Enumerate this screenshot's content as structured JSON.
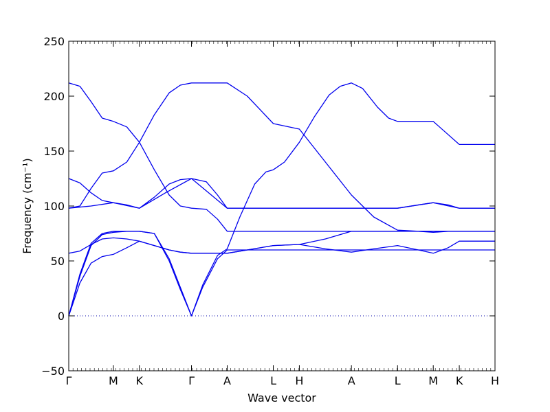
{
  "chart_data": {
    "type": "line",
    "xlabel": "Wave vector",
    "ylabel": "Frequency (cm⁻¹)",
    "ylim": [
      -50,
      250
    ],
    "yticks": [
      -50,
      0,
      50,
      100,
      150,
      200,
      250
    ],
    "xticks": [
      {
        "label": "Γ",
        "x": 0
      },
      {
        "label": "M",
        "x": 0.6
      },
      {
        "label": "K",
        "x": 0.95
      },
      {
        "label": "Γ",
        "x": 1.65
      },
      {
        "label": "A",
        "x": 2.13
      },
      {
        "label": "L",
        "x": 2.75
      },
      {
        "label": "H",
        "x": 3.1
      },
      {
        "label": "A",
        "x": 3.8
      },
      {
        "label": "L",
        "x": 4.42
      },
      {
        "label": "M",
        "x": 4.9
      },
      {
        "label": "K",
        "x": 5.25
      },
      {
        "label": "H",
        "x": 5.73
      }
    ],
    "xlim": [
      0,
      5.73
    ],
    "zero_line": {
      "y": 0,
      "style": "dotted"
    },
    "line_color": "#0000ee",
    "series": [
      {
        "x": [
          0,
          0.15,
          0.3,
          0.45,
          0.6,
          0.78,
          0.95,
          1.15,
          1.35,
          1.5,
          1.65,
          1.8,
          2.0,
          2.13,
          2.3,
          2.5,
          2.65,
          2.75,
          2.9,
          3.1,
          3.3,
          3.5,
          3.65,
          3.8,
          3.95,
          4.15,
          4.3,
          4.42,
          4.6,
          4.8,
          4.9,
          5.05,
          5.25,
          5.4,
          5.73
        ],
        "values": [
          0,
          38,
          66,
          75,
          77,
          77,
          77,
          75,
          50,
          24,
          0,
          28,
          55,
          61,
          90,
          120,
          131,
          133,
          140,
          158,
          181,
          201,
          209,
          212,
          207,
          190,
          180,
          177,
          177,
          177,
          177,
          168,
          156,
          156,
          156
        ]
      },
      {
        "x": [
          0,
          0.15,
          0.3,
          0.45,
          0.6,
          0.78,
          0.95,
          1.15,
          1.35,
          1.5,
          1.65,
          1.8,
          2.0,
          2.13,
          2.4,
          2.75,
          3.1,
          3.45,
          3.8,
          4.1,
          4.42,
          4.7,
          4.9,
          5.1,
          5.25,
          5.73
        ],
        "values": [
          0,
          36,
          64,
          74,
          76,
          77,
          77,
          75,
          52,
          26,
          0,
          26,
          52,
          60,
          60,
          60,
          60,
          60,
          60,
          60,
          60,
          60,
          60,
          60,
          60,
          60
        ]
      },
      {
        "x": [
          0,
          0.15,
          0.3,
          0.45,
          0.6,
          0.78,
          0.95,
          1.15,
          1.35,
          1.5,
          1.65,
          1.8,
          2.0,
          2.13,
          2.4,
          2.75,
          3.1,
          3.45,
          3.8,
          4.1,
          4.42,
          4.7,
          4.9,
          5.1,
          5.25,
          5.73
        ],
        "values": [
          0,
          30,
          48,
          54,
          56,
          62,
          68,
          64,
          60,
          58,
          57,
          57,
          57,
          57,
          60,
          64,
          65,
          70,
          77,
          77,
          77,
          77,
          77,
          77,
          77,
          77
        ]
      },
      {
        "x": [
          0,
          0.15,
          0.3,
          0.45,
          0.6,
          0.78,
          0.95,
          1.15,
          1.35,
          1.5,
          1.65,
          1.85,
          2.0,
          2.13,
          2.4,
          2.75,
          3.1,
          3.45,
          3.8,
          4.1,
          4.42,
          4.7,
          4.9,
          5.1,
          5.25,
          5.73
        ],
        "values": [
          57,
          59,
          65,
          70,
          71,
          70,
          68,
          64,
          60,
          58,
          57,
          57,
          57,
          57,
          60,
          64,
          65,
          61,
          58,
          61,
          64,
          60,
          57,
          62,
          68,
          68
        ]
      },
      {
        "x": [
          0,
          0.15,
          0.3,
          0.45,
          0.6,
          0.78,
          0.95,
          1.15,
          1.35,
          1.5,
          1.65,
          1.85,
          2.0,
          2.13,
          2.4,
          2.75,
          3.1,
          3.45,
          3.8,
          4.1,
          4.42,
          4.7,
          4.9,
          5.1,
          5.25,
          5.73
        ],
        "values": [
          125,
          121,
          112,
          105,
          103,
          101,
          98,
          108,
          120,
          124,
          125,
          122,
          110,
          98,
          98,
          98,
          98,
          98,
          98,
          98,
          98,
          101,
          103,
          101,
          98,
          98
        ]
      },
      {
        "x": [
          0,
          0.15,
          0.3,
          0.45,
          0.6,
          0.78,
          0.95,
          1.15,
          1.35,
          1.5,
          1.65,
          1.85,
          2.0,
          2.13,
          2.4,
          2.75,
          3.1,
          3.45,
          3.8,
          4.1,
          4.42,
          4.7,
          4.9,
          5.1,
          5.25,
          5.73
        ],
        "values": [
          98,
          100,
          116,
          130,
          132,
          140,
          158,
          183,
          203,
          210,
          212,
          212,
          212,
          212,
          200,
          175,
          170,
          140,
          110,
          90,
          78,
          77,
          76,
          77,
          77,
          77
        ]
      },
      {
        "x": [
          0,
          0.15,
          0.3,
          0.45,
          0.6,
          0.78,
          0.95,
          1.15,
          1.35,
          1.5,
          1.65,
          1.85,
          2.0,
          2.13,
          2.4,
          2.75,
          3.1,
          3.45,
          3.8,
          4.1,
          4.42,
          4.7,
          4.9,
          5.1,
          5.25,
          5.73
        ],
        "values": [
          212,
          209,
          195,
          180,
          177,
          172,
          158,
          133,
          110,
          100,
          98,
          97,
          88,
          77,
          77,
          77,
          77,
          77,
          77,
          77,
          77,
          77,
          77,
          77,
          77,
          77
        ]
      },
      {
        "x": [
          0,
          0.3,
          0.6,
          0.95,
          1.3,
          1.65,
          2.13,
          2.5,
          2.75,
          3.1,
          3.5,
          3.8,
          4.1,
          4.42,
          4.9,
          5.25,
          5.73
        ],
        "values": [
          98,
          100,
          103,
          98,
          112,
          125,
          98,
          98,
          98,
          98,
          98,
          98,
          98,
          98,
          103,
          98,
          98
        ]
      }
    ]
  }
}
